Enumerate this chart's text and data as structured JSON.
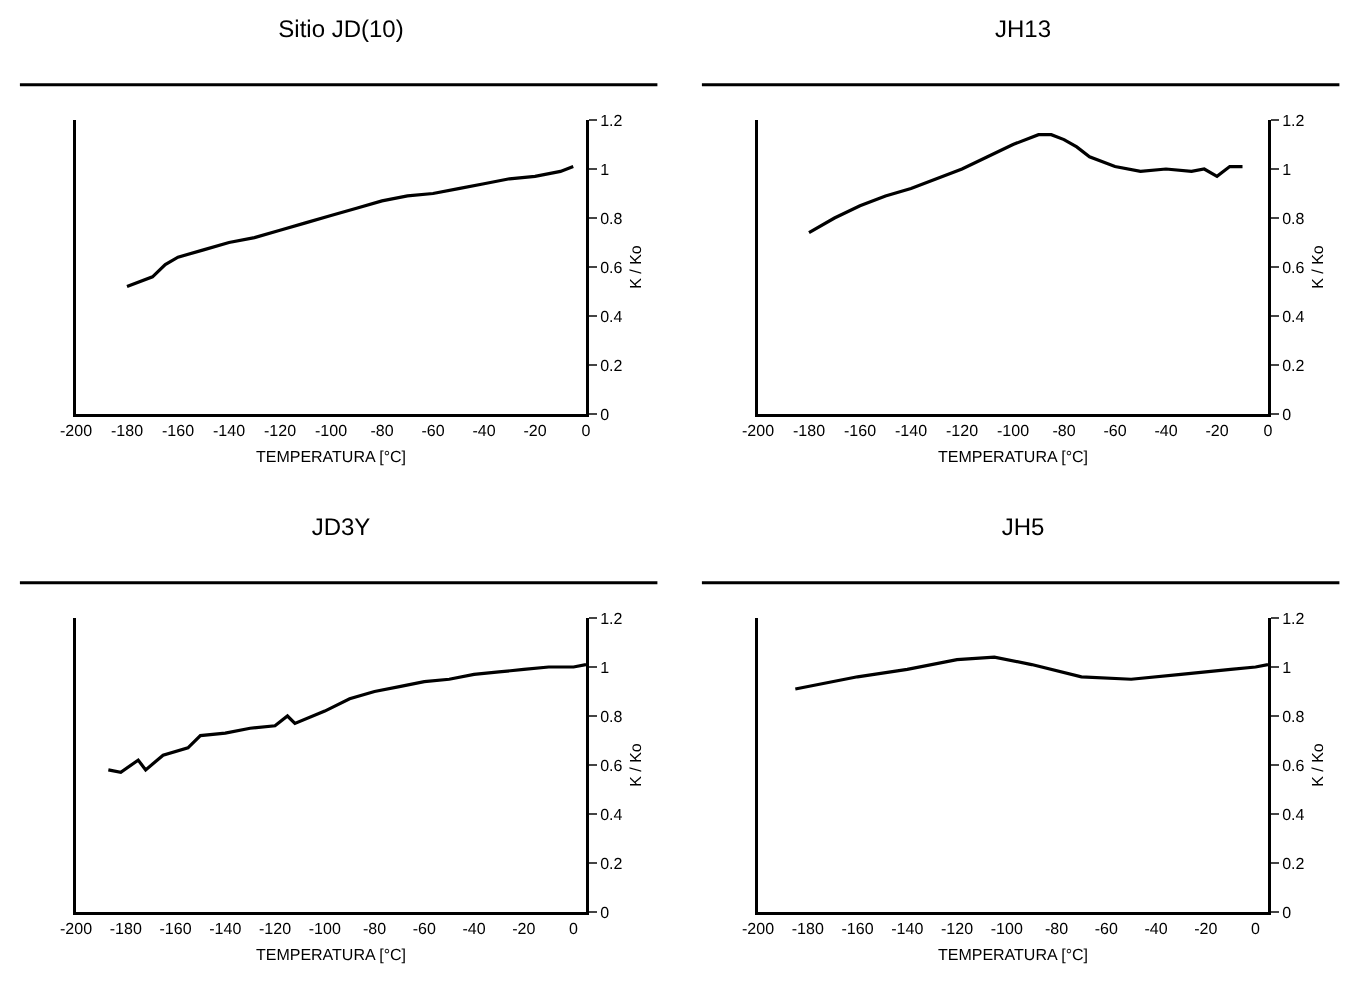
{
  "chart_data": [
    {
      "type": "line",
      "title": "Sitio JD(10)",
      "xlabel": "TEMPERATURA [°C]",
      "ylabel": "K / Ko",
      "x": [
        -180,
        -170,
        -165,
        -160,
        -150,
        -140,
        -130,
        -120,
        -110,
        -100,
        -90,
        -80,
        -70,
        -60,
        -50,
        -40,
        -30,
        -20,
        -10,
        -5
      ],
      "series": [
        {
          "color": "#000000",
          "values": [
            0.52,
            0.56,
            0.61,
            0.64,
            0.67,
            0.7,
            0.72,
            0.75,
            0.78,
            0.81,
            0.84,
            0.87,
            0.89,
            0.9,
            0.92,
            0.94,
            0.96,
            0.97,
            0.99,
            1.01
          ]
        }
      ],
      "xlim": [
        -200,
        0
      ],
      "xticks": [
        -200,
        -180,
        -160,
        -140,
        -120,
        -100,
        -80,
        -60,
        -40,
        -20,
        0
      ],
      "ylim": [
        0,
        1.2
      ],
      "yticks": [
        0,
        0.2,
        0.4,
        0.6,
        0.8,
        1,
        1.2
      ]
    },
    {
      "type": "line",
      "title": "JH13",
      "xlabel": "TEMPERATURA [°C]",
      "ylabel": "K / Ko",
      "x": [
        -180,
        -170,
        -160,
        -150,
        -140,
        -130,
        -120,
        -110,
        -100,
        -90,
        -85,
        -80,
        -75,
        -70,
        -60,
        -50,
        -40,
        -30,
        -25,
        -20,
        -15,
        -10
      ],
      "series": [
        {
          "color": "#000000",
          "values": [
            0.74,
            0.8,
            0.85,
            0.89,
            0.92,
            0.96,
            1.0,
            1.05,
            1.1,
            1.14,
            1.14,
            1.12,
            1.09,
            1.05,
            1.01,
            0.99,
            1.0,
            0.99,
            1.0,
            0.97,
            1.01,
            1.01
          ]
        }
      ],
      "xlim": [
        -200,
        0
      ],
      "xticks": [
        -200,
        -180,
        -160,
        -140,
        -120,
        -100,
        -80,
        -60,
        -40,
        -20,
        0
      ],
      "ylim": [
        0,
        1.2
      ],
      "yticks": [
        0,
        0.2,
        0.4,
        0.6,
        0.8,
        1,
        1.2
      ]
    },
    {
      "type": "line",
      "title": "JD3Y",
      "xlabel": "TEMPERATURA [°C]",
      "ylabel": "K / Ko",
      "x": [
        -187,
        -182,
        -175,
        -172,
        -165,
        -155,
        -150,
        -140,
        -130,
        -120,
        -115,
        -112,
        -100,
        -90,
        -80,
        -70,
        -60,
        -50,
        -40,
        -30,
        -20,
        -10,
        0,
        5
      ],
      "series": [
        {
          "color": "#000000",
          "values": [
            0.58,
            0.57,
            0.62,
            0.58,
            0.64,
            0.67,
            0.72,
            0.73,
            0.75,
            0.76,
            0.8,
            0.77,
            0.82,
            0.87,
            0.9,
            0.92,
            0.94,
            0.95,
            0.97,
            0.98,
            0.99,
            1.0,
            1.0,
            1.01
          ]
        }
      ],
      "xlim": [
        -200,
        5
      ],
      "xticks": [
        -200,
        -180,
        -160,
        -140,
        -120,
        -100,
        -80,
        -60,
        -40,
        -20,
        0
      ],
      "ylim": [
        0,
        1.2
      ],
      "yticks": [
        0,
        0.2,
        0.4,
        0.6,
        0.8,
        1,
        1.2
      ]
    },
    {
      "type": "line",
      "title": "JH5",
      "xlabel": "TEMPERATURA [°C]",
      "ylabel": "K / Ko",
      "x": [
        -185,
        -160,
        -140,
        -120,
        -105,
        -90,
        -70,
        -50,
        -30,
        -10,
        0,
        5
      ],
      "series": [
        {
          "color": "#000000",
          "values": [
            0.91,
            0.96,
            0.99,
            1.03,
            1.04,
            1.01,
            0.96,
            0.95,
            0.97,
            0.99,
            1.0,
            1.01
          ]
        }
      ],
      "xlim": [
        -200,
        5
      ],
      "xticks": [
        -200,
        -180,
        -160,
        -140,
        -120,
        -100,
        -80,
        -60,
        -40,
        -20,
        0
      ],
      "ylim": [
        0,
        1.2
      ],
      "yticks": [
        0,
        0.2,
        0.4,
        0.6,
        0.8,
        1,
        1.2
      ]
    }
  ]
}
